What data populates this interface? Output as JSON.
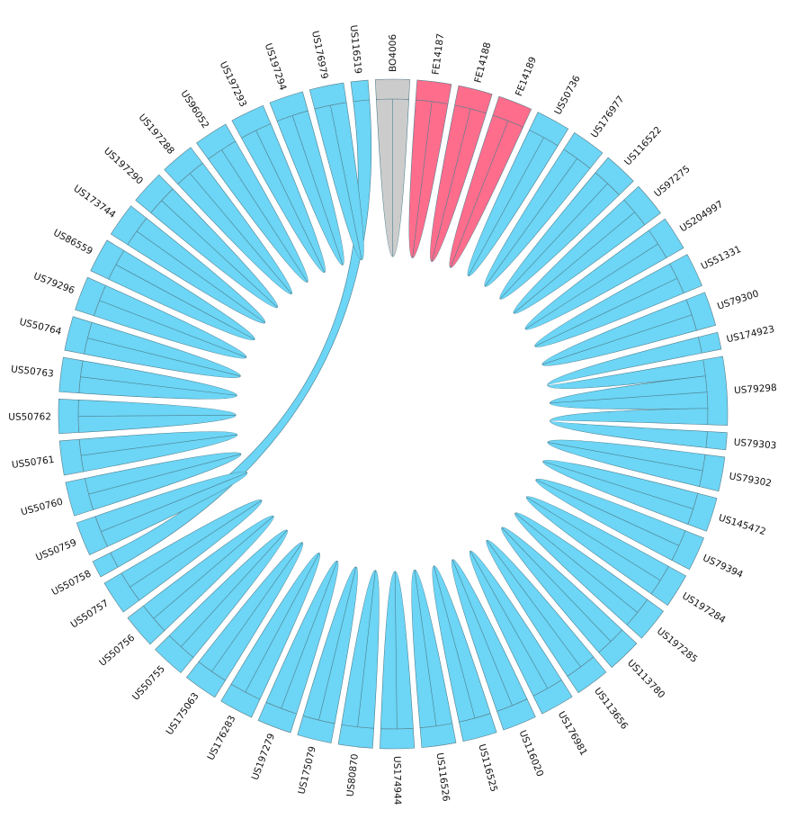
{
  "chart_data": {
    "type": "chord",
    "colors": {
      "default": "#6dd5f5",
      "BO": "#cccccc",
      "FE": "#ff6d8c",
      "stroke": "#4a7f8f"
    },
    "nodes": [
      {
        "name": "BO4006",
        "group": "BO"
      },
      {
        "name": "FE14187",
        "group": "FE"
      },
      {
        "name": "FE14188",
        "group": "FE"
      },
      {
        "name": "FE14189",
        "group": "FE"
      },
      {
        "name": "US50736",
        "group": "US"
      },
      {
        "name": "US176977",
        "group": "US"
      },
      {
        "name": "US116522",
        "group": "US"
      },
      {
        "name": "US97275",
        "group": "US"
      },
      {
        "name": "US204997",
        "group": "US"
      },
      {
        "name": "US51331",
        "group": "US"
      },
      {
        "name": "US79300",
        "group": "US"
      },
      {
        "name": "US174923",
        "group": "US"
      },
      {
        "name": "US79298",
        "group": "US"
      },
      {
        "name": "US79303",
        "group": "US"
      },
      {
        "name": "US79302",
        "group": "US"
      },
      {
        "name": "US145472",
        "group": "US"
      },
      {
        "name": "US79394",
        "group": "US"
      },
      {
        "name": "US197284",
        "group": "US"
      },
      {
        "name": "US197285",
        "group": "US"
      },
      {
        "name": "US113780",
        "group": "US"
      },
      {
        "name": "US113656",
        "group": "US"
      },
      {
        "name": "US176981",
        "group": "US"
      },
      {
        "name": "US116020",
        "group": "US"
      },
      {
        "name": "US116525",
        "group": "US"
      },
      {
        "name": "US116526",
        "group": "US"
      },
      {
        "name": "US174944",
        "group": "US"
      },
      {
        "name": "US80870",
        "group": "US"
      },
      {
        "name": "US175079",
        "group": "US"
      },
      {
        "name": "US197279",
        "group": "US"
      },
      {
        "name": "US176283",
        "group": "US"
      },
      {
        "name": "US175063",
        "group": "US"
      },
      {
        "name": "US50755",
        "group": "US"
      },
      {
        "name": "US50756",
        "group": "US"
      },
      {
        "name": "US50757",
        "group": "US"
      },
      {
        "name": "US50758",
        "group": "US"
      },
      {
        "name": "US50759",
        "group": "US"
      },
      {
        "name": "US50760",
        "group": "US"
      },
      {
        "name": "US50761",
        "group": "US"
      },
      {
        "name": "US50762",
        "group": "US"
      },
      {
        "name": "US50763",
        "group": "US"
      },
      {
        "name": "US50764",
        "group": "US"
      },
      {
        "name": "US79296",
        "group": "US"
      },
      {
        "name": "US86559",
        "group": "US"
      },
      {
        "name": "US173744",
        "group": "US"
      },
      {
        "name": "US197290",
        "group": "US"
      },
      {
        "name": "US197288",
        "group": "US"
      },
      {
        "name": "US96052",
        "group": "US"
      },
      {
        "name": "US197293",
        "group": "US"
      },
      {
        "name": "US197294",
        "group": "US"
      },
      {
        "name": "US176979",
        "group": "US"
      },
      {
        "name": "US116519",
        "group": "US"
      }
    ],
    "links": [
      {
        "source": "BO4006",
        "target": "BO4006",
        "value": 1
      },
      {
        "source": "FE14187",
        "target": "FE14187",
        "value": 1
      },
      {
        "source": "FE14188",
        "target": "FE14188",
        "value": 1
      },
      {
        "source": "FE14189",
        "target": "FE14189",
        "value": 1
      },
      {
        "source": "US50736",
        "target": "US50736",
        "value": 1
      },
      {
        "source": "US176977",
        "target": "US176977",
        "value": 1
      },
      {
        "source": "US116522",
        "target": "US116522",
        "value": 1
      },
      {
        "source": "US97275",
        "target": "US97275",
        "value": 1
      },
      {
        "source": "US204997",
        "target": "US204997",
        "value": 1
      },
      {
        "source": "US51331",
        "target": "US51331",
        "value": 1
      },
      {
        "source": "US79300",
        "target": "US79300",
        "value": 1
      },
      {
        "source": "US174923",
        "target": "US79298",
        "value": 1
      },
      {
        "source": "US79298",
        "target": "US79298",
        "value": 1
      },
      {
        "source": "US79303",
        "target": "US79298",
        "value": 1
      },
      {
        "source": "US79302",
        "target": "US79302",
        "value": 1
      },
      {
        "source": "US145472",
        "target": "US145472",
        "value": 1
      },
      {
        "source": "US79394",
        "target": "US79394",
        "value": 1
      },
      {
        "source": "US197284",
        "target": "US197284",
        "value": 1
      },
      {
        "source": "US197285",
        "target": "US197285",
        "value": 1
      },
      {
        "source": "US113780",
        "target": "US113780",
        "value": 1
      },
      {
        "source": "US113656",
        "target": "US113656",
        "value": 1
      },
      {
        "source": "US176981",
        "target": "US176981",
        "value": 1
      },
      {
        "source": "US116020",
        "target": "US116020",
        "value": 1
      },
      {
        "source": "US116525",
        "target": "US116525",
        "value": 1
      },
      {
        "source": "US116526",
        "target": "US116526",
        "value": 1
      },
      {
        "source": "US174944",
        "target": "US174944",
        "value": 1
      },
      {
        "source": "US80870",
        "target": "US80870",
        "value": 1
      },
      {
        "source": "US175079",
        "target": "US175079",
        "value": 1
      },
      {
        "source": "US197279",
        "target": "US197279",
        "value": 1
      },
      {
        "source": "US176283",
        "target": "US176283",
        "value": 1
      },
      {
        "source": "US175063",
        "target": "US175063",
        "value": 1
      },
      {
        "source": "US50755",
        "target": "US50755",
        "value": 1
      },
      {
        "source": "US50756",
        "target": "US50756",
        "value": 1
      },
      {
        "source": "US50757",
        "target": "US50757",
        "value": 1
      },
      {
        "source": "US50758",
        "target": "US116519",
        "value": 1
      },
      {
        "source": "US50759",
        "target": "US50759",
        "value": 1
      },
      {
        "source": "US50760",
        "target": "US50760",
        "value": 1
      },
      {
        "source": "US50761",
        "target": "US50761",
        "value": 1
      },
      {
        "source": "US50762",
        "target": "US50762",
        "value": 1
      },
      {
        "source": "US50763",
        "target": "US50763",
        "value": 1
      },
      {
        "source": "US50764",
        "target": "US50764",
        "value": 1
      },
      {
        "source": "US79296",
        "target": "US79296",
        "value": 1
      },
      {
        "source": "US86559",
        "target": "US86559",
        "value": 1
      },
      {
        "source": "US173744",
        "target": "US173744",
        "value": 1
      },
      {
        "source": "US197290",
        "target": "US197290",
        "value": 1
      },
      {
        "source": "US197288",
        "target": "US197288",
        "value": 1
      },
      {
        "source": "US96052",
        "target": "US96052",
        "value": 1
      },
      {
        "source": "US197293",
        "target": "US197293",
        "value": 1
      },
      {
        "source": "US197294",
        "target": "US197294",
        "value": 1
      },
      {
        "source": "US176979",
        "target": "US176979",
        "value": 1
      }
    ]
  }
}
